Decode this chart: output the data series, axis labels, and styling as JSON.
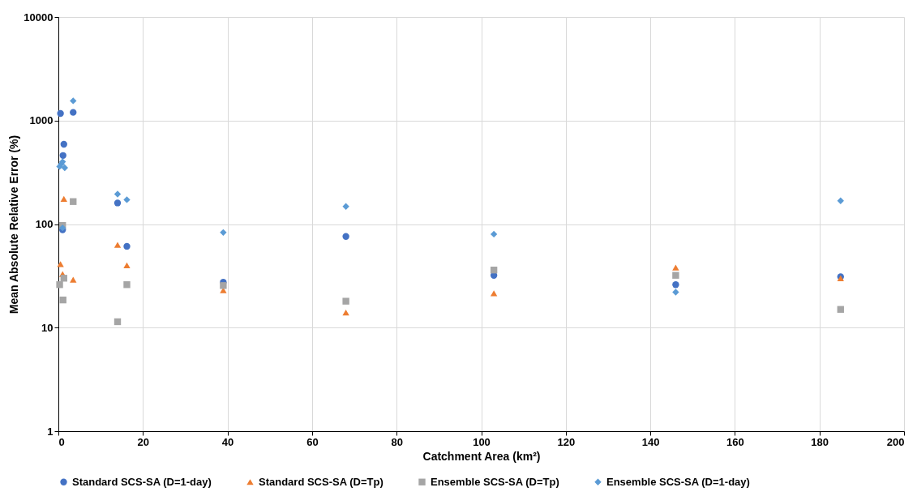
{
  "chart_data": {
    "type": "scatter",
    "xlabel": "Catchment Area (km²)",
    "ylabel": "Mean Absolute Relative Error (%)",
    "xlim": [
      0,
      200
    ],
    "xticks": [
      0,
      20,
      40,
      60,
      80,
      100,
      120,
      140,
      160,
      180,
      200
    ],
    "ylim": [
      1,
      10000
    ],
    "yticks": [
      1,
      10,
      100,
      1000,
      10000
    ],
    "log": "y",
    "grid": true,
    "legend": "bottom",
    "series": [
      {
        "name": "Standard SCS-SA (D=1-day)",
        "color": "#4472c4",
        "marker": "circle",
        "x": [
          0.5,
          1,
          1.1,
          1.3,
          3.5,
          14,
          16.2,
          39,
          68,
          103,
          146,
          185
        ],
        "values": [
          1170,
          88,
          460,
          590,
          1200,
          160,
          61,
          27.5,
          76,
          32,
          26,
          31
        ]
      },
      {
        "name": "Standard SCS-SA (D=Tp)",
        "color": "#ed7d31",
        "marker": "triangle",
        "x": [
          0.5,
          1,
          1.3,
          3.5,
          14,
          16.2,
          39,
          68,
          103,
          146,
          185
        ],
        "values": [
          41,
          33,
          175,
          29,
          63,
          40,
          23,
          14,
          21.5,
          38,
          30
        ]
      },
      {
        "name": "Ensemble SCS-SA (D=Tp)",
        "color": "#a5a5a5",
        "marker": "square",
        "x": [
          0.3,
          1,
          1.1,
          1.3,
          3.5,
          14,
          16.2,
          39,
          68,
          103,
          146,
          185
        ],
        "values": [
          26,
          97,
          18.5,
          30,
          165,
          11.4,
          26,
          25.5,
          18,
          36,
          32,
          15
        ]
      },
      {
        "name": "Ensemble SCS-SA (D=1-day)",
        "color": "#5b9bd5",
        "marker": "diamond",
        "x": [
          0.3,
          0.7,
          1,
          1,
          1.5,
          3.5,
          14,
          16.2,
          39,
          68,
          103,
          146,
          185
        ],
        "values": [
          360,
          380,
          400,
          92,
          350,
          1550,
          195,
          172,
          83,
          148,
          80,
          22,
          168
        ]
      }
    ]
  }
}
